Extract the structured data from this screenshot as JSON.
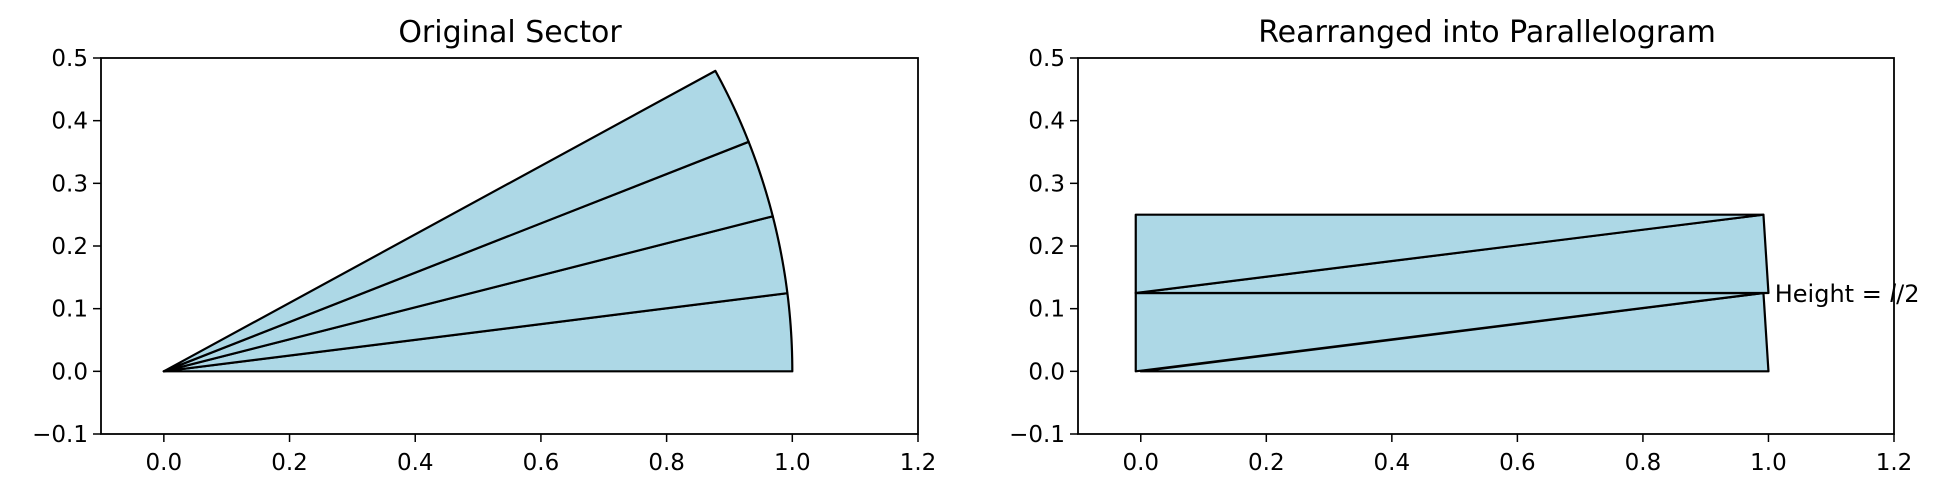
{
  "colors": {
    "fill": "#add8e6",
    "edge": "#000000",
    "background": "#ffffff"
  },
  "chart_data": [
    {
      "type": "diagram",
      "title": "Original Sector",
      "xlim": [
        -0.1,
        1.2
      ],
      "ylim": [
        -0.1,
        0.5
      ],
      "xticks": [
        0.0,
        0.2,
        0.4,
        0.6,
        0.8,
        1.0,
        1.2
      ],
      "yticks": [
        -0.1,
        0.0,
        0.1,
        0.2,
        0.3,
        0.4,
        0.5
      ],
      "xtick_labels": [
        "0.0",
        "0.2",
        "0.4",
        "0.6",
        "0.8",
        "1.0",
        "1.2"
      ],
      "ytick_labels": [
        "−0.1",
        "0.0",
        "0.1",
        "0.2",
        "0.3",
        "0.4",
        "0.5"
      ],
      "grid": false,
      "sector": {
        "center": [
          0,
          0
        ],
        "radius": 1.0,
        "slices": 4,
        "slice_angle_rad": 0.125
      }
    },
    {
      "type": "diagram",
      "title": "Rearranged into Parallelogram",
      "xlim": [
        -0.1,
        1.2
      ],
      "ylim": [
        -0.1,
        0.5
      ],
      "xticks": [
        0.0,
        0.2,
        0.4,
        0.6,
        0.8,
        1.0,
        1.2
      ],
      "yticks": [
        -0.1,
        0.0,
        0.1,
        0.2,
        0.3,
        0.4,
        0.5
      ],
      "xtick_labels": [
        "0.0",
        "0.2",
        "0.4",
        "0.6",
        "0.8",
        "1.0",
        "1.2"
      ],
      "ytick_labels": [
        "−0.1",
        "0.0",
        "0.1",
        "0.2",
        "0.3",
        "0.4",
        "0.5"
      ],
      "grid": false,
      "annotation": {
        "text_prefix": "Height = ",
        "text_italic": "l",
        "text_suffix": "/2",
        "x": 1.01,
        "y": 0.125
      },
      "pieces": [
        {
          "apex": [
            0,
            0
          ],
          "base": [
            [
              1.0,
              0.0
            ],
            [
              0.992,
              0.125
            ]
          ]
        },
        {
          "apex": [
            0.992,
            0.125
          ],
          "base": [
            [
              -0.008,
              0.0
            ],
            [
              -0.008,
              0.125
            ]
          ]
        },
        {
          "apex": [
            -0.008,
            0.125
          ],
          "base": [
            [
              1.0,
              0.125
            ],
            [
              0.992,
              0.25
            ]
          ]
        },
        {
          "apex": [
            0.992,
            0.25
          ],
          "base": [
            [
              -0.008,
              0.125
            ],
            [
              -0.008,
              0.25
            ]
          ]
        }
      ]
    }
  ]
}
